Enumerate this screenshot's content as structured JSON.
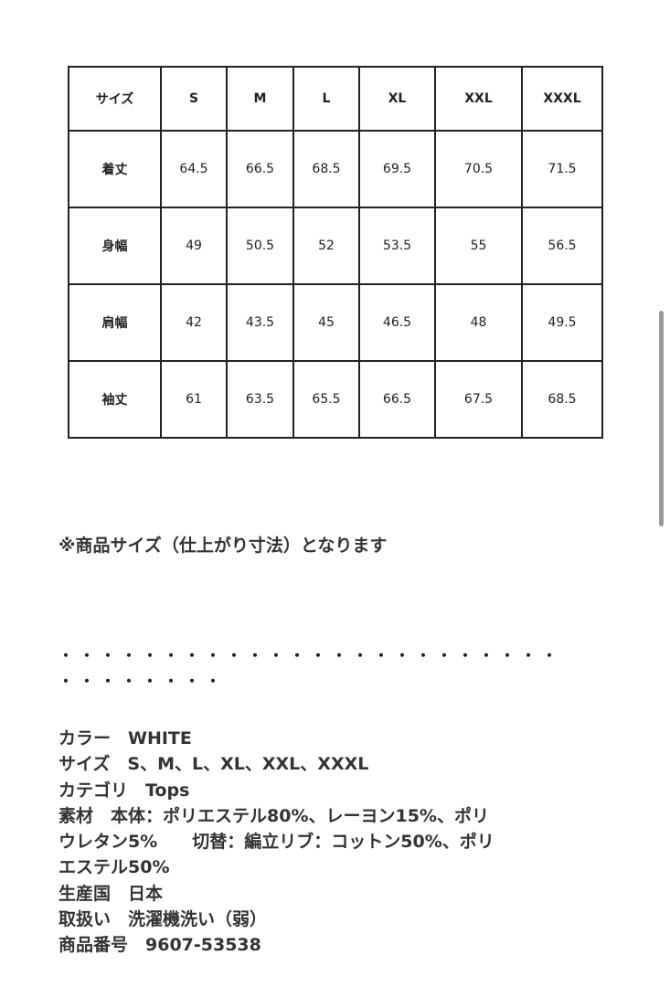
{
  "size_table": {
    "headers": [
      "サイズ",
      "S",
      "M",
      "L",
      "XL",
      "XXL",
      "XXXL"
    ],
    "rows": [
      {
        "label": "着丈",
        "values": [
          "64.5",
          "66.5",
          "68.5",
          "69.5",
          "70.5",
          "71.5"
        ]
      },
      {
        "label": "身幅",
        "values": [
          "49",
          "50.5",
          "52",
          "53.5",
          "55",
          "56.5"
        ]
      },
      {
        "label": "肩幅",
        "values": [
          "42",
          "43.5",
          "45",
          "46.5",
          "48",
          "49.5"
        ]
      },
      {
        "label": "袖丈",
        "values": [
          "61",
          "63.5",
          "65.5",
          "66.5",
          "67.5",
          "68.5"
        ]
      }
    ]
  },
  "note": "※商品サイズ（仕上がり寸法）となります",
  "divider_dots": [
    "・・・・・・・・・・・・・・・・・・・・・・・・",
    "・・・・・・・・"
  ],
  "details": [
    "カラー　WHITE",
    "サイズ　S、M、L、XL、XXL、XXXL",
    "カテゴリ　Tops",
    "素材　本体：ポリエステル80%、レーヨン15%、ポリ",
    "ウレタン5%　　切替：編立リブ：コットン50%、ポリ",
    "エステル50%",
    "生産国　日本",
    "取扱い　洗濯機洗い（弱）",
    "商品番号　9607-53538"
  ]
}
